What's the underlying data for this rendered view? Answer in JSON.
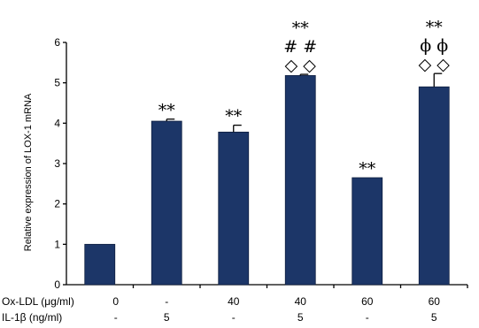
{
  "chart_data": {
    "type": "bar",
    "ylabel": "Relative expression of LOX-1 mRNA",
    "ylim": [
      0,
      6
    ],
    "yticks": [
      "0",
      "1",
      "2",
      "3",
      "4",
      "5",
      "6"
    ],
    "bar_color": "#1c3668",
    "values": [
      1.0,
      4.05,
      3.78,
      5.18,
      2.65,
      4.9
    ],
    "errors": [
      0,
      0.05,
      0.17,
      0.03,
      0,
      0.33
    ],
    "annotations": [
      [],
      [
        "**"
      ],
      [
        "**"
      ],
      [
        "◇ ◇",
        "# #",
        "**"
      ],
      [
        "**"
      ],
      [
        "◇ ◇",
        "ϕ ϕ",
        "**"
      ]
    ],
    "conditions": [
      {
        "label": "Ox-LDL (μg/ml)",
        "values": [
          "0",
          "-",
          "40",
          "40",
          "60",
          "60"
        ]
      },
      {
        "label": "IL-1β (ng/ml)",
        "values": [
          "-",
          "5",
          "-",
          "5",
          "-",
          "5"
        ]
      }
    ]
  }
}
